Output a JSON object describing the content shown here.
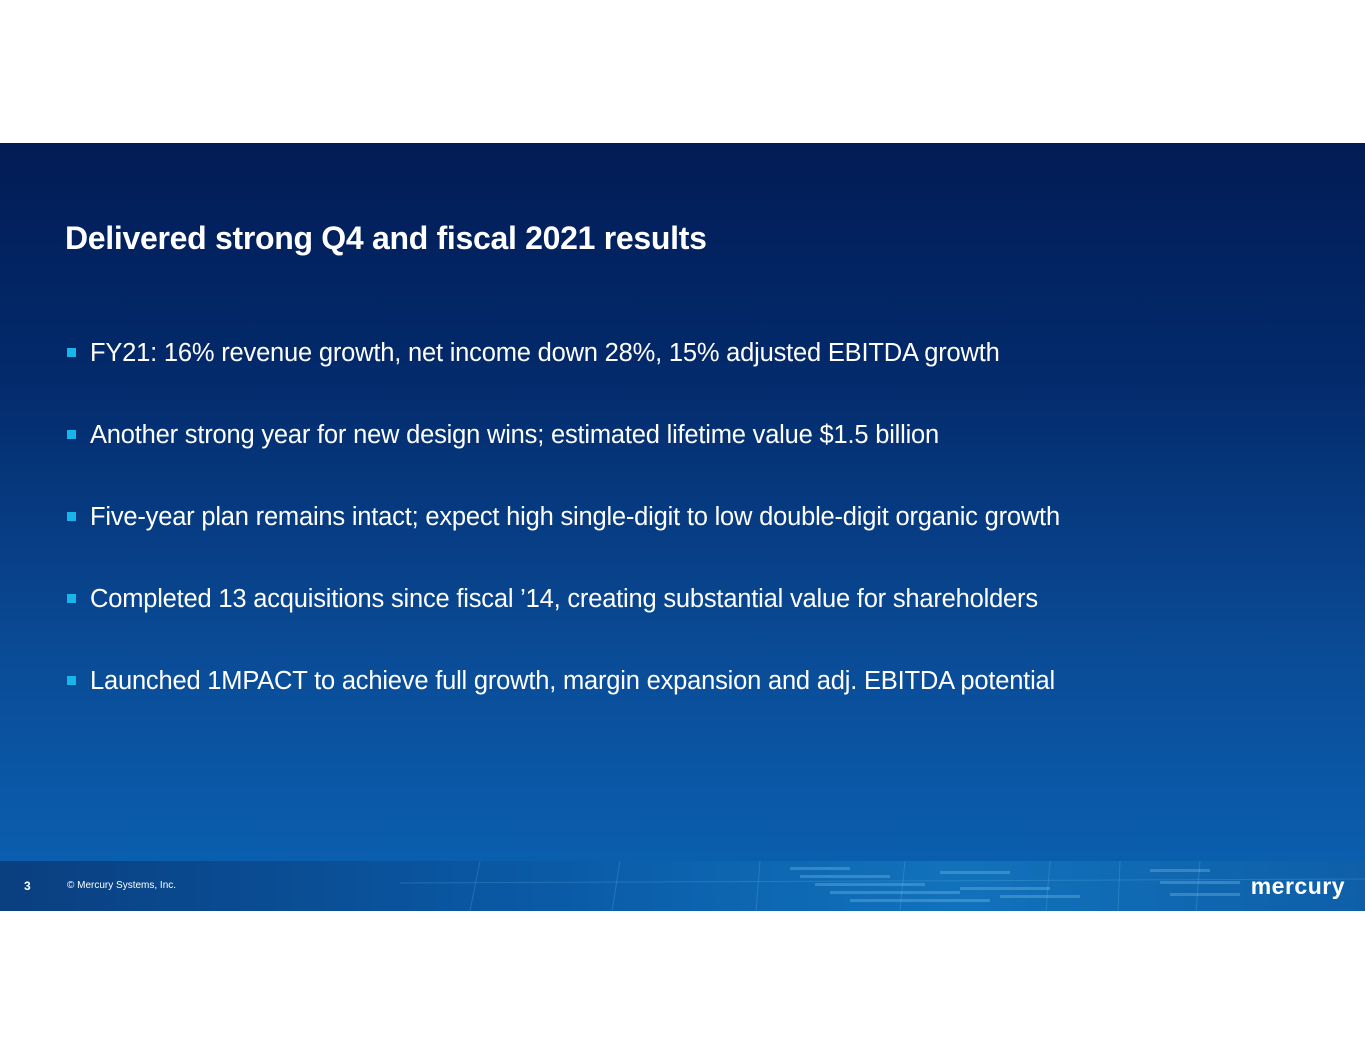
{
  "slide": {
    "title": "Delivered strong Q4 and fiscal 2021 results",
    "bullets": [
      "FY21: 16% revenue growth, net income down 28%, 15% adjusted EBITDA growth",
      "Another strong year for new design wins; estimated lifetime value $1.5 billion",
      "Five-year plan remains intact; expect high single-digit to low double-digit organic growth",
      "Completed 13 acquisitions since fiscal ’14, creating substantial value for shareholders",
      "Launched 1MPACT to achieve full growth, margin expansion and adj. EBITDA potential"
    ]
  },
  "footer": {
    "page_number": "3",
    "copyright": "© Mercury Systems, Inc.",
    "logo_text": "mercury"
  },
  "colors": {
    "background_top": "#021c56",
    "background_bottom": "#0a63b4",
    "bullet_marker": "#17b5ea",
    "text": "#ffffff"
  }
}
